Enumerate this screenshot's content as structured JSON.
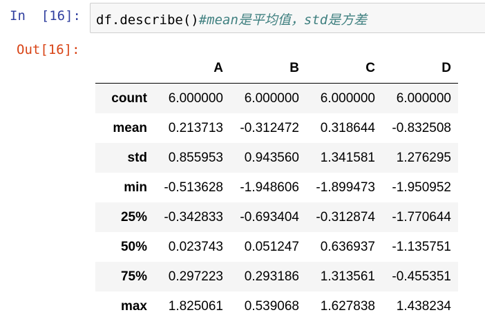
{
  "input": {
    "prompt": "In  [16]:",
    "code": "df.describe()",
    "comment": "#mean是平均值，std是方差"
  },
  "output": {
    "prompt": "Out[16]:",
    "columns": [
      "A",
      "B",
      "C",
      "D"
    ],
    "rows": [
      {
        "label": "count",
        "values": [
          "6.000000",
          "6.000000",
          "6.000000",
          "6.000000"
        ]
      },
      {
        "label": "mean",
        "values": [
          "0.213713",
          "-0.312472",
          "0.318644",
          "-0.832508"
        ]
      },
      {
        "label": "std",
        "values": [
          "0.855953",
          "0.943560",
          "1.341581",
          "1.276295"
        ]
      },
      {
        "label": "min",
        "values": [
          "-0.513628",
          "-1.948606",
          "-1.899473",
          "-1.950952"
        ]
      },
      {
        "label": "25%",
        "values": [
          "-0.342833",
          "-0.693404",
          "-0.312874",
          "-1.770644"
        ]
      },
      {
        "label": "50%",
        "values": [
          "0.023743",
          "0.051247",
          "0.636937",
          "-1.135751"
        ]
      },
      {
        "label": "75%",
        "values": [
          "0.297223",
          "0.293186",
          "1.313561",
          "-0.455351"
        ]
      },
      {
        "label": "max",
        "values": [
          "1.825061",
          "0.539068",
          "1.627838",
          "1.438234"
        ]
      }
    ]
  },
  "colors": {
    "in_prompt": "#303f9f",
    "out_prompt": "#d84315",
    "comment": "#408080",
    "cell_background": "#f7f7f7",
    "cell_border": "#cfcfcf",
    "row_stripe": "#f5f5f5"
  }
}
